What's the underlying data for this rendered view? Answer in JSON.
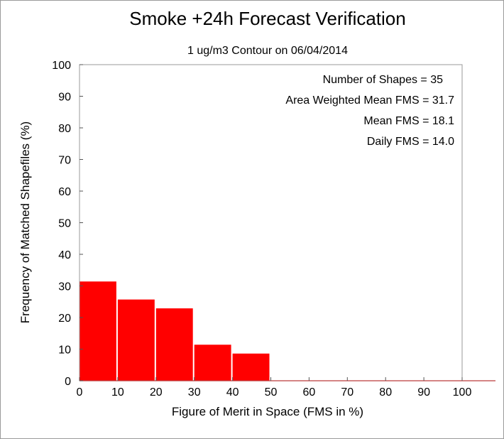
{
  "chart_data": {
    "type": "bar",
    "title": "Smoke +24h Forecast Verification",
    "subtitle": "1 ug/m3 Contour on 06/04/2014",
    "xlabel": "Figure of Merit in Space (FMS in %)",
    "ylabel": "Frequency of Matched Shapefiles (%)",
    "xlim": [
      0,
      100
    ],
    "ylim": [
      0,
      100
    ],
    "x_ticks": [
      "0",
      "10",
      "20",
      "30",
      "40",
      "50",
      "60",
      "70",
      "80",
      "90",
      "100"
    ],
    "y_ticks": [
      "0",
      "10",
      "20",
      "30",
      "40",
      "50",
      "60",
      "70",
      "80",
      "90",
      "100"
    ],
    "bins": [
      [
        0,
        10
      ],
      [
        10,
        20
      ],
      [
        20,
        30
      ],
      [
        30,
        40
      ],
      [
        40,
        50
      ],
      [
        50,
        60
      ],
      [
        60,
        70
      ],
      [
        70,
        80
      ],
      [
        80,
        90
      ],
      [
        90,
        100
      ]
    ],
    "values": [
      31.4,
      25.7,
      22.9,
      11.4,
      8.6,
      0,
      0,
      0,
      0,
      0
    ],
    "bar_color": "#ff0000",
    "grid": false,
    "stats": [
      "Number of Shapes = 35",
      "Area Weighted Mean FMS = 31.7",
      "Mean FMS = 18.1",
      "Daily FMS = 14.0"
    ]
  }
}
